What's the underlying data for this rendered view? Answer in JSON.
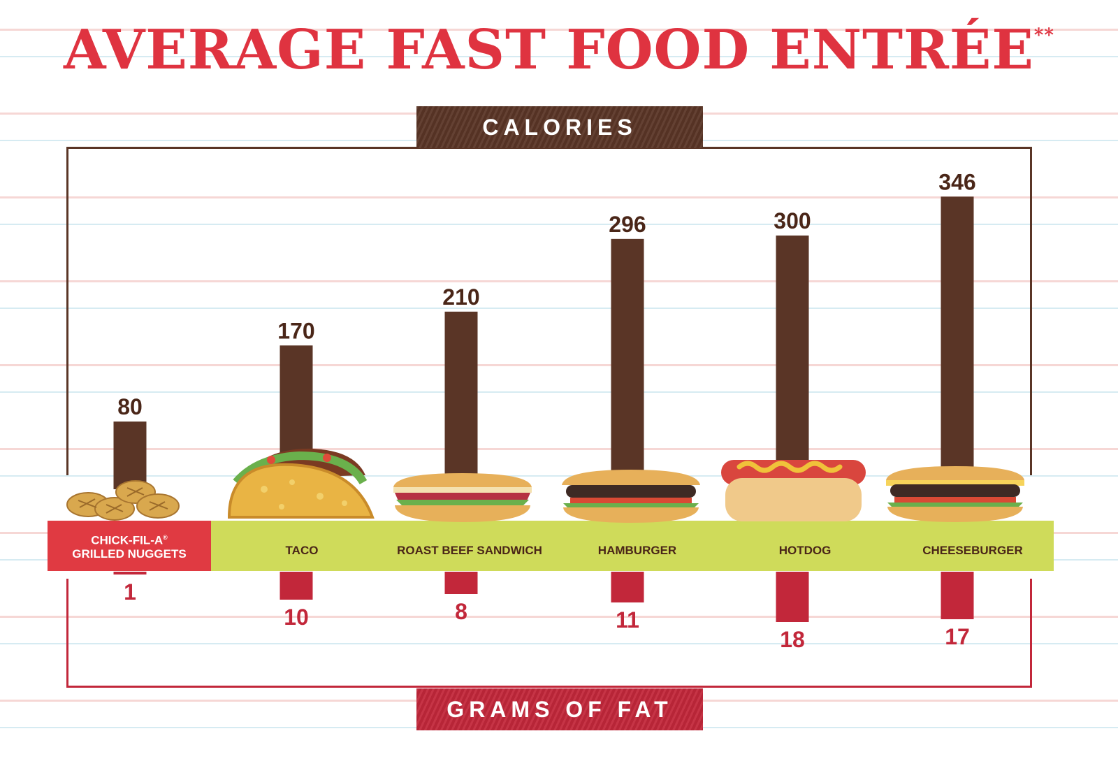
{
  "title": "AVERAGE FAST FOOD ENTRÉE",
  "title_note": "**",
  "calories_header": "CALORIES",
  "fat_header": "GRAMS OF FAT",
  "featured_label": [
    "CHICK-FIL-A",
    "®",
    "GRILLED NUGGETS"
  ],
  "colors": {
    "title": "#df3340",
    "calories_bar": "#5a3526",
    "fat_bar": "#c2273a",
    "band": "#cfdb5a",
    "featured_box": "#e03a42"
  },
  "chart_data": {
    "type": "bar",
    "categories": [
      "CHICK-FIL-A® GRILLED NUGGETS",
      "TACO",
      "ROAST BEEF SANDWICH",
      "HAMBURGER",
      "HOTDOG",
      "CHEESEBURGER"
    ],
    "series": [
      {
        "name": "CALORIES",
        "values": [
          80,
          170,
          210,
          296,
          300,
          346
        ]
      },
      {
        "name": "GRAMS OF FAT",
        "values": [
          1,
          10,
          8,
          11,
          18,
          17
        ]
      }
    ],
    "title": "AVERAGE FAST FOOD ENTRÉE",
    "grid": false,
    "legend": "none"
  }
}
